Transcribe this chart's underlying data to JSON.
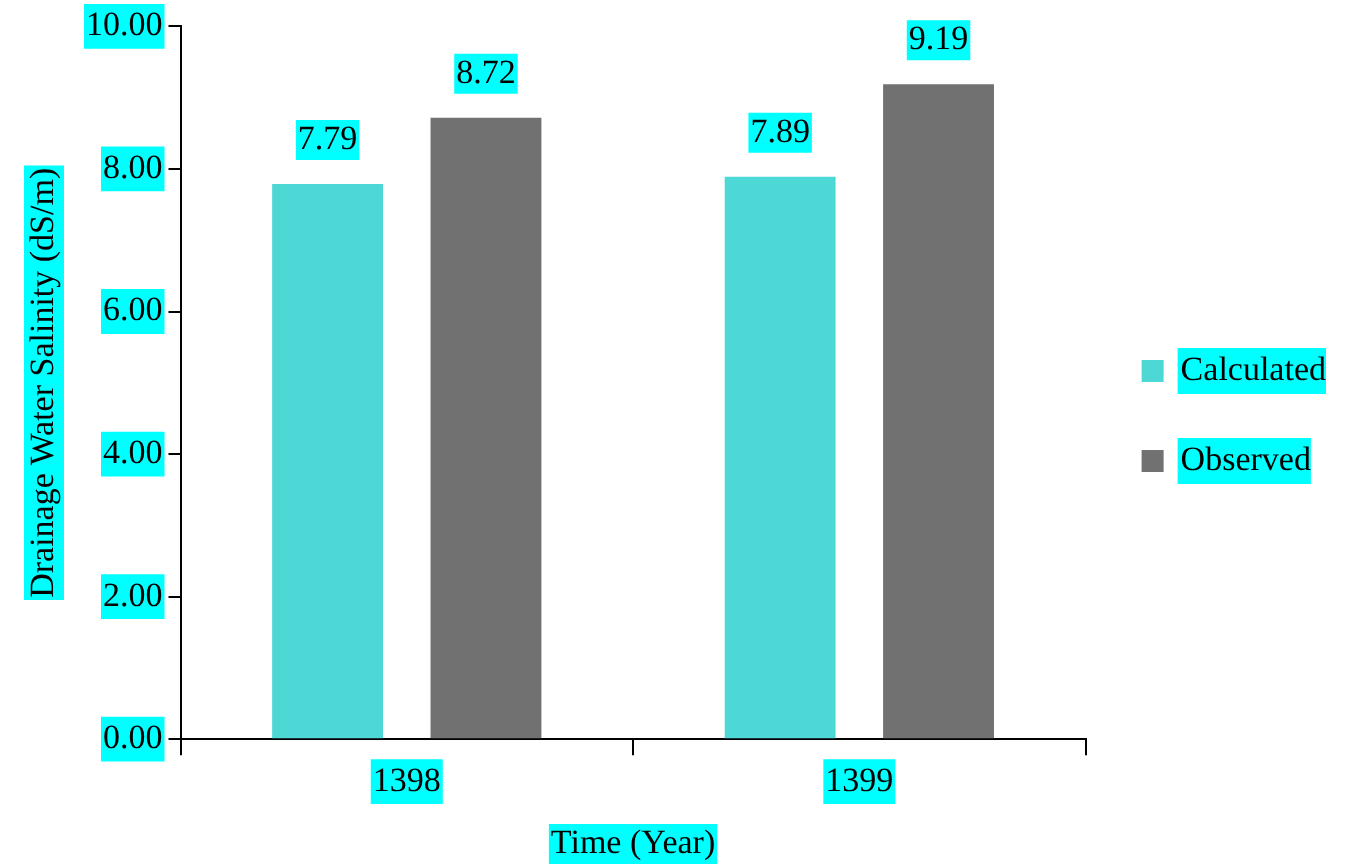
{
  "chart_data": {
    "type": "bar",
    "xlabel": "Time (Year)",
    "ylabel": "Drainage Water Salinity (dS/m)",
    "categories": [
      "1398",
      "1399"
    ],
    "series": [
      {
        "name": "Calculated",
        "color": "#4dd8d6",
        "values": [
          7.79,
          7.89
        ]
      },
      {
        "name": "Observed",
        "color": "#717171",
        "values": [
          8.72,
          9.19
        ]
      }
    ],
    "ylim": [
      0,
      10
    ],
    "yticks": [
      {
        "value": 0,
        "label": "0.00"
      },
      {
        "value": 2,
        "label": "2.00"
      },
      {
        "value": 4,
        "label": "4.00"
      },
      {
        "value": 6,
        "label": "6.00"
      },
      {
        "value": 8,
        "label": "8.00"
      },
      {
        "value": 10,
        "label": "10.00"
      }
    ],
    "grid": false,
    "legend": "right",
    "data_labels": true
  }
}
